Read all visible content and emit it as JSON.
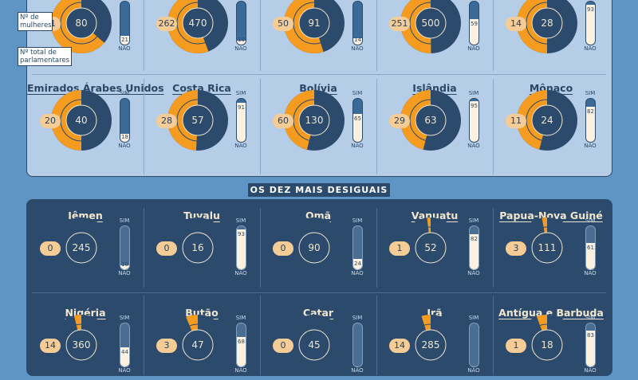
{
  "legend": {
    "women_label": "Nº de mulheres",
    "total_label": "Nº total de parlamentares"
  },
  "bar_labels": {
    "yes": "SIM",
    "no": "NÃO"
  },
  "section_title": {
    "prefix": "OS DEZ MAIS",
    "highlight": "DESIGUAIS"
  },
  "colors": {
    "women": "#f59b1f",
    "men": "#2c4a6b",
    "badge": "#f5cc95",
    "bar_fill": "#fbf1de"
  },
  "top_row1": [
    {
      "name": "",
      "women": "51",
      "total": "80",
      "yes": "21",
      "women_val": 51,
      "total_val": 80,
      "yes_val": 21
    },
    {
      "name": "",
      "women": "262",
      "total": "470",
      "yes": "10",
      "women_val": 262,
      "total_val": 470,
      "yes_val": 10
    },
    {
      "name": "",
      "women": "50",
      "total": "91",
      "yes": "14",
      "women_val": 50,
      "total_val": 91,
      "yes_val": 14
    },
    {
      "name": "",
      "women": "251",
      "total": "500",
      "yes": "59",
      "women_val": 251,
      "total_val": 500,
      "yes_val": 59
    },
    {
      "name": "",
      "women": "14",
      "total": "28",
      "yes": "93",
      "women_val": 14,
      "total_val": 28,
      "yes_val": 93
    }
  ],
  "top_row2": [
    {
      "name": "Emirados Árabes Unidos",
      "women": "20",
      "total": "40",
      "yes": "18",
      "women_val": 20,
      "total_val": 40,
      "yes_val": 18
    },
    {
      "name": "Costa Rica",
      "women": "28",
      "total": "57",
      "yes": "91",
      "women_val": 28,
      "total_val": 57,
      "yes_val": 91
    },
    {
      "name": "Bolívia",
      "women": "60",
      "total": "130",
      "yes": "65",
      "women_val": 60,
      "total_val": 130,
      "yes_val": 65
    },
    {
      "name": "Islândia",
      "women": "29",
      "total": "63",
      "yes": "95",
      "women_val": 29,
      "total_val": 63,
      "yes_val": 95
    },
    {
      "name": "Mônaco",
      "women": "11",
      "total": "24",
      "yes": "82",
      "women_val": 11,
      "total_val": 24,
      "yes_val": 82
    }
  ],
  "bottom_row1": [
    {
      "name": "Iêmen",
      "women": "0",
      "total": "245",
      "yes": "10",
      "women_val": 0,
      "total_val": 245,
      "yes_val": 10
    },
    {
      "name": "Tuvalu",
      "women": "0",
      "total": "16",
      "yes": "93",
      "women_val": 0,
      "total_val": 16,
      "yes_val": 93
    },
    {
      "name": "Omã",
      "women": "0",
      "total": "90",
      "yes": "24",
      "women_val": 0,
      "total_val": 90,
      "yes_val": 24
    },
    {
      "name": "Vanuatu",
      "women": "1",
      "total": "52",
      "yes": "82",
      "women_val": 1,
      "total_val": 52,
      "yes_val": 82
    },
    {
      "name": "Papua-Nova Guiné",
      "women": "3",
      "total": "111",
      "yes": "61",
      "women_val": 3,
      "total_val": 111,
      "yes_val": 61
    }
  ],
  "bottom_row2": [
    {
      "name": "Nigéria",
      "women": "14",
      "total": "360",
      "yes": "44",
      "women_val": 14,
      "total_val": 360,
      "yes_val": 44
    },
    {
      "name": "Butão",
      "women": "3",
      "total": "47",
      "yes": "68",
      "women_val": 3,
      "total_val": 47,
      "yes_val": 68
    },
    {
      "name": "Catar",
      "women": "0",
      "total": "45",
      "yes": "",
      "women_val": 0,
      "total_val": 45,
      "yes_val": 0
    },
    {
      "name": "Irã",
      "women": "14",
      "total": "285",
      "yes": "",
      "women_val": 14,
      "total_val": 285,
      "yes_val": 0
    },
    {
      "name": "Antígua e Barbuda",
      "women": "1",
      "total": "18",
      "yes": "83",
      "women_val": 1,
      "total_val": 18,
      "yes_val": 83
    }
  ]
}
